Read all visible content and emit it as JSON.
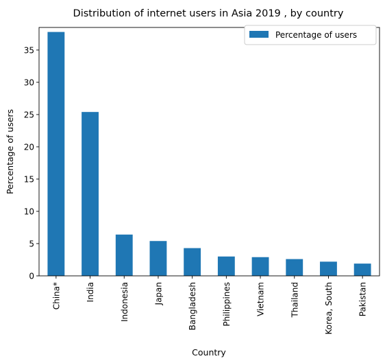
{
  "chart_data": {
    "type": "bar",
    "title": "Distribution of internet users in Asia 2019 , by country",
    "xlabel": "Country",
    "ylabel": "Percentage of users",
    "categories": [
      "China*",
      "India",
      "Indonesia",
      "Japan",
      "Bangladesh",
      "Philippines",
      "Vietnam",
      "Thailand",
      "Korea, South",
      "Pakistan"
    ],
    "series": [
      {
        "name": "Percentage of users",
        "values": [
          37.8,
          25.4,
          6.4,
          5.4,
          4.3,
          3.0,
          2.9,
          2.6,
          2.2,
          1.9
        ]
      }
    ],
    "ylim": [
      0,
      38.5
    ],
    "yticks": [
      0,
      5,
      10,
      15,
      20,
      25,
      30,
      35
    ],
    "grid": false,
    "legend_position": "top-right",
    "colors": {
      "bar": "#1f77b4",
      "axis": "#000000",
      "legend_border": "#cccccc"
    }
  }
}
